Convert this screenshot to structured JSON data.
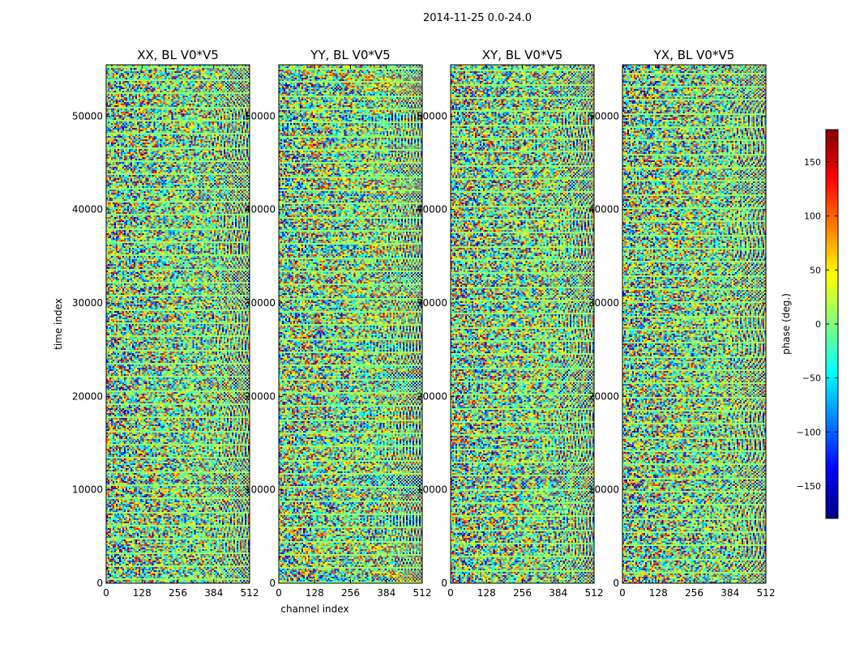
{
  "figure": {
    "suptitle": "2014-11-25 0.0-24.0"
  },
  "chart_data": [
    {
      "type": "heatmap",
      "title": "XX, BL V0*V5",
      "xlabel": "",
      "ylabel": "time index",
      "xlim": [
        0,
        512
      ],
      "ylim": [
        0,
        55500
      ],
      "xticks": [
        0,
        128,
        256,
        384,
        512
      ],
      "yticks": [
        0,
        10000,
        20000,
        30000,
        40000,
        50000
      ],
      "value": "phase (deg.)"
    },
    {
      "type": "heatmap",
      "title": "YY, BL V0*V5",
      "xlabel": "channel index",
      "ylabel": "",
      "xlim": [
        0,
        512
      ],
      "ylim": [
        0,
        55500
      ],
      "xticks": [
        0,
        128,
        256,
        384,
        512
      ],
      "yticks": [
        0,
        10000,
        20000,
        30000,
        40000,
        50000
      ],
      "value": "phase (deg.)"
    },
    {
      "type": "heatmap",
      "title": "XY, BL V0*V5",
      "xlabel": "",
      "ylabel": "",
      "xlim": [
        0,
        512
      ],
      "ylim": [
        0,
        55500
      ],
      "xticks": [
        0,
        128,
        256,
        384,
        512
      ],
      "yticks": [
        0,
        10000,
        20000,
        30000,
        40000,
        50000
      ],
      "value": "phase (deg.)"
    },
    {
      "type": "heatmap",
      "title": "YX, BL V0*V5",
      "xlabel": "",
      "ylabel": "",
      "xlim": [
        0,
        512
      ],
      "ylim": [
        0,
        55500
      ],
      "xticks": [
        0,
        128,
        256,
        384,
        512
      ],
      "yticks": [
        0,
        10000,
        20000,
        30000,
        40000,
        50000
      ],
      "value": "phase (deg.)"
    }
  ],
  "colorbar": {
    "label": "phase (deg.)",
    "range": [
      -180,
      180
    ],
    "ticks": [
      150,
      100,
      50,
      0,
      -50,
      -100,
      -150
    ],
    "colormap": "jet",
    "colors": [
      "#00007f",
      "#0000ff",
      "#007fff",
      "#00ffff",
      "#7fff7f",
      "#ffff00",
      "#ff7f00",
      "#ff0000",
      "#7f0000"
    ]
  }
}
